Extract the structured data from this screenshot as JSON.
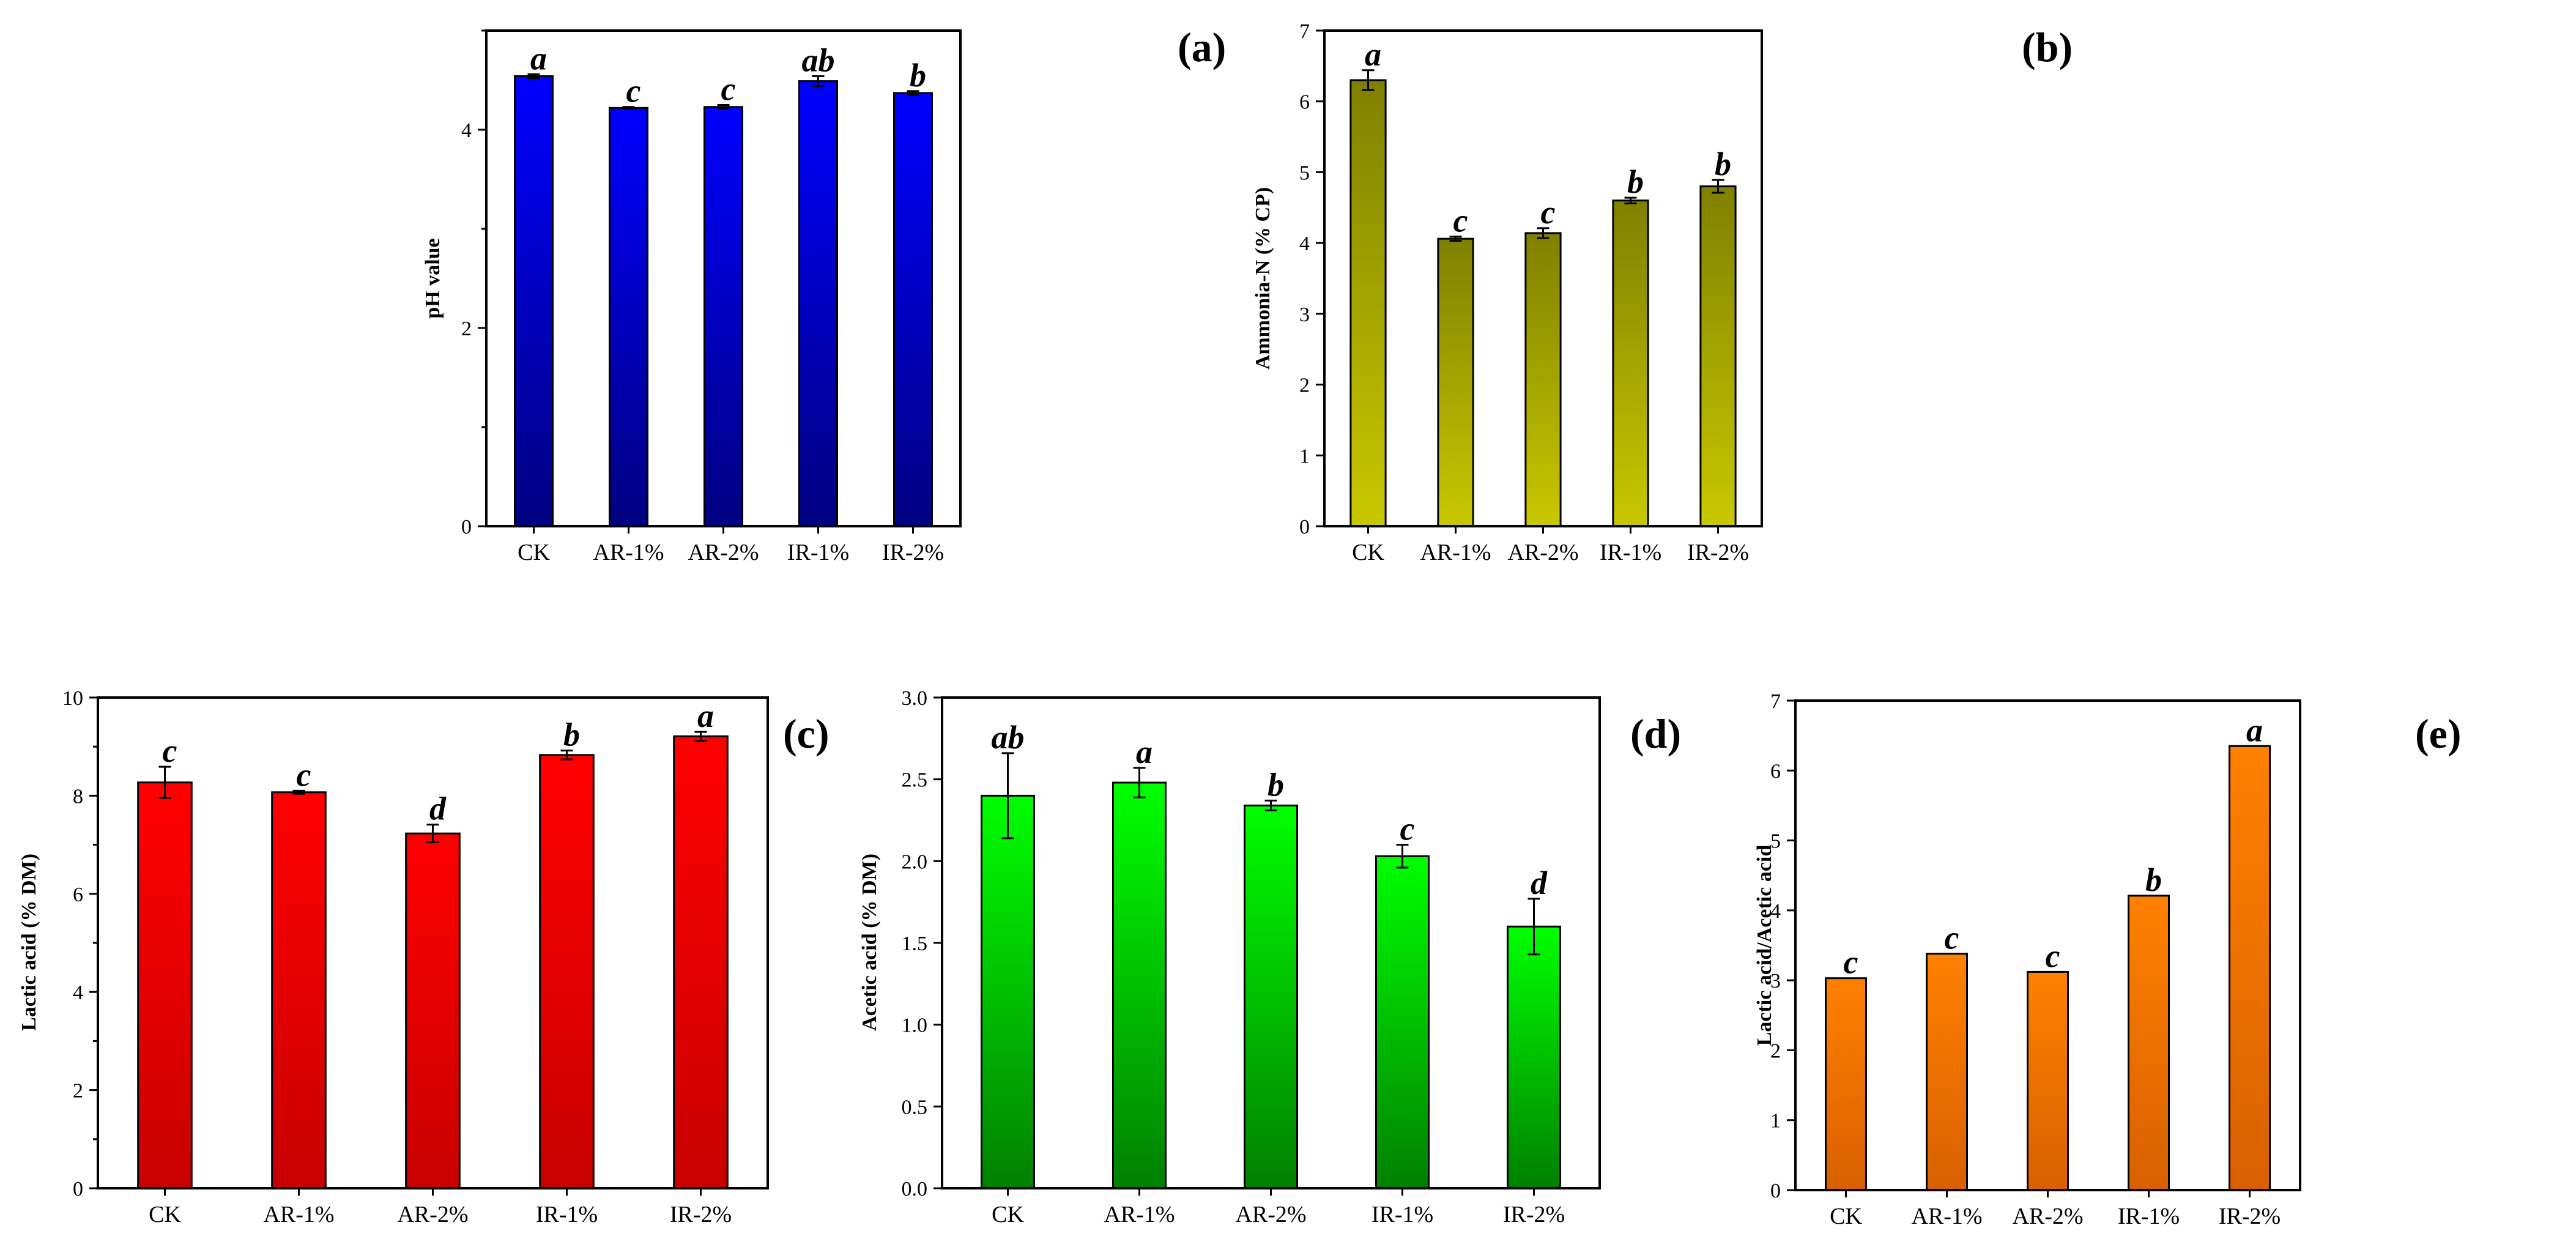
{
  "categories": [
    "CK",
    "AR-1%",
    "AR-2%",
    "IR-1%",
    "IR-2%"
  ],
  "chart_data": [
    {
      "type": "bar",
      "panel": "(a)",
      "ylabel": "pH value",
      "categories": [
        "CK",
        "AR-1%",
        "AR-2%",
        "IR-1%",
        "IR-2%"
      ],
      "values": [
        4.54,
        4.22,
        4.23,
        4.49,
        4.37
      ],
      "errors": [
        0.02,
        0.01,
        0.02,
        0.05,
        0.02
      ],
      "letters": [
        "a",
        "c",
        "c",
        "ab",
        "b"
      ],
      "ylim": [
        0,
        5
      ],
      "ticks": [
        "0",
        "2",
        "4"
      ],
      "tickvals": [
        0,
        2,
        4
      ],
      "minor": [
        1,
        3,
        5
      ],
      "colors": {
        "top": "#0000ff",
        "bottom": "#000080"
      }
    },
    {
      "type": "bar",
      "panel": "(b)",
      "ylabel": "Ammonia-N (% CP)",
      "categories": [
        "CK",
        "AR-1%",
        "AR-2%",
        "IR-1%",
        "IR-2%"
      ],
      "values": [
        6.3,
        4.06,
        4.14,
        4.6,
        4.8
      ],
      "errors": [
        0.14,
        0.03,
        0.07,
        0.04,
        0.09
      ],
      "letters": [
        "a",
        "c",
        "c",
        "b",
        "b"
      ],
      "ylim": [
        0,
        7
      ],
      "ticks": [
        "0",
        "1",
        "2",
        "3",
        "4",
        "5",
        "6",
        "7"
      ],
      "tickvals": [
        0,
        1,
        2,
        3,
        4,
        5,
        6,
        7
      ],
      "minor": [],
      "colors": {
        "top": "#808000",
        "bottom": "#c8c800"
      }
    },
    {
      "type": "bar",
      "panel": "(c)",
      "ylabel": "Lactic acid (% DM)",
      "categories": [
        "CK",
        "AR-1%",
        "AR-2%",
        "IR-1%",
        "IR-2%"
      ],
      "values": [
        8.27,
        8.07,
        7.23,
        8.83,
        9.21
      ],
      "errors": [
        0.32,
        0.03,
        0.18,
        0.09,
        0.09
      ],
      "letters": [
        "c",
        "c",
        "d",
        "b",
        "a"
      ],
      "ylim": [
        0,
        10
      ],
      "ticks": [
        "0",
        "2",
        "4",
        "6",
        "8",
        "10"
      ],
      "tickvals": [
        0,
        2,
        4,
        6,
        8,
        10
      ],
      "minor": [
        1,
        3,
        5,
        7,
        9
      ],
      "colors": {
        "top": "#ff0000",
        "bottom": "#c80000"
      }
    },
    {
      "type": "bar",
      "panel": "(d)",
      "ylabel": "Acetic acid (% DM)",
      "categories": [
        "CK",
        "AR-1%",
        "AR-2%",
        "IR-1%",
        "IR-2%"
      ],
      "values": [
        2.4,
        2.48,
        2.34,
        2.03,
        1.6
      ],
      "errors": [
        0.26,
        0.09,
        0.03,
        0.07,
        0.17
      ],
      "letters": [
        "ab",
        "a",
        "b",
        "c",
        "d"
      ],
      "ylim": [
        0,
        3.0
      ],
      "ticks": [
        "0.0",
        "0.5",
        "1.0",
        "1.5",
        "2.0",
        "2.5",
        "3.0"
      ],
      "tickvals": [
        0,
        0.5,
        1.0,
        1.5,
        2.0,
        2.5,
        3.0
      ],
      "minor": [],
      "colors": {
        "top": "#00ff00",
        "bottom": "#008000"
      }
    },
    {
      "type": "bar",
      "panel": "(e)",
      "ylabel": "Lactic acid/Acetic acid",
      "categories": [
        "CK",
        "AR-1%",
        "AR-2%",
        "IR-1%",
        "IR-2%"
      ],
      "values": [
        3.03,
        3.38,
        3.12,
        4.21,
        6.35
      ],
      "errors": [
        0,
        0,
        0,
        0,
        0
      ],
      "letters": [
        "c",
        "c",
        "c",
        "b",
        "a"
      ],
      "ylim": [
        0,
        7
      ],
      "ticks": [
        "0",
        "1",
        "2",
        "3",
        "4",
        "5",
        "6",
        "7"
      ],
      "tickvals": [
        0,
        1,
        2,
        3,
        4,
        5,
        6,
        7
      ],
      "minor": [],
      "colors": {
        "top": "#ff8000",
        "bottom": "#d96000"
      }
    }
  ]
}
